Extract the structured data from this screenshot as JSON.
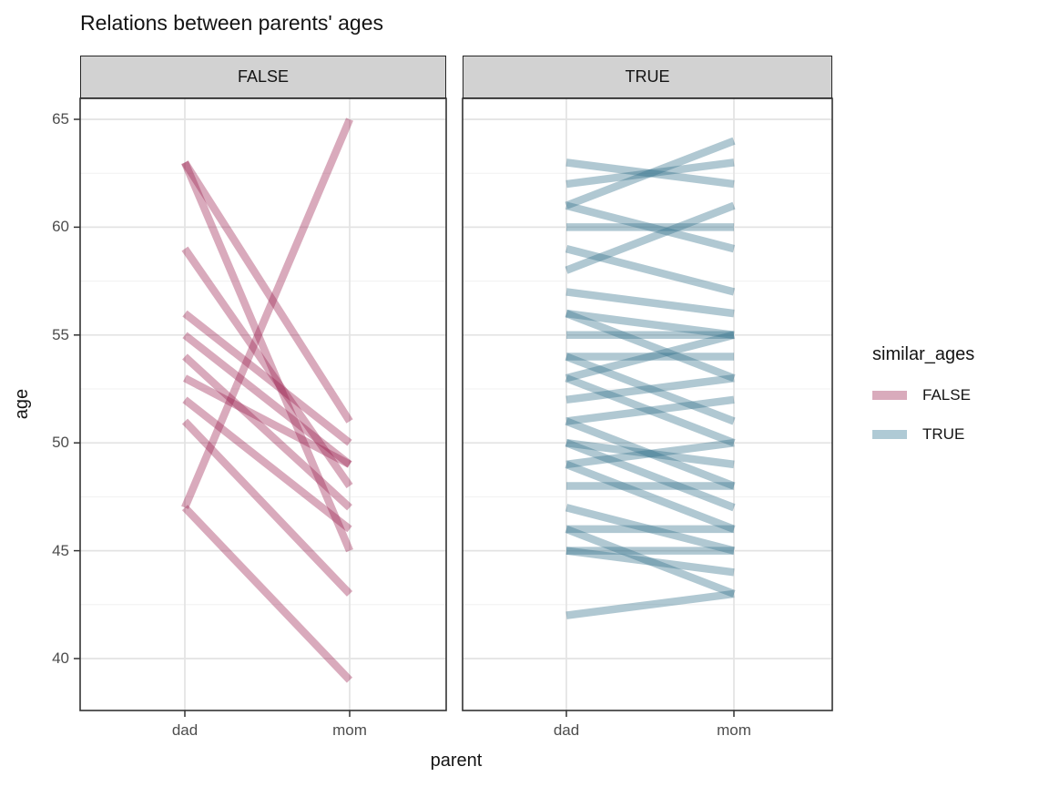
{
  "chart_data": {
    "type": "line",
    "subtype": "slopegraph-faceted",
    "title": "Relations between parents' ages",
    "xlabel": "parent",
    "ylabel": "age",
    "x_categories": [
      "dad",
      "mom"
    ],
    "y_ticks": [
      40,
      45,
      50,
      55,
      60,
      65
    ],
    "y_minor_ticks": [
      42.5,
      47.5,
      52.5,
      57.5,
      62.5
    ],
    "ylim": [
      37.6,
      66.1
    ],
    "grid": true,
    "line_opacity": 0.38,
    "facets": [
      {
        "label": "FALSE",
        "line_color": "#9B1F4F",
        "lines": [
          {
            "dad": 63,
            "mom": 51
          },
          {
            "dad": 63,
            "mom": 45
          },
          {
            "dad": 59,
            "mom": 48
          },
          {
            "dad": 56,
            "mom": 50
          },
          {
            "dad": 55,
            "mom": 49
          },
          {
            "dad": 54,
            "mom": 47
          },
          {
            "dad": 53,
            "mom": 49
          },
          {
            "dad": 52,
            "mom": 46
          },
          {
            "dad": 51,
            "mom": 43
          },
          {
            "dad": 47,
            "mom": 65
          },
          {
            "dad": 47,
            "mom": 39
          }
        ]
      },
      {
        "label": "TRUE",
        "line_color": "#2F6F88",
        "lines": [
          {
            "dad": 63,
            "mom": 62
          },
          {
            "dad": 62,
            "mom": 63
          },
          {
            "dad": 61,
            "mom": 64
          },
          {
            "dad": 61,
            "mom": 59
          },
          {
            "dad": 60,
            "mom": 60
          },
          {
            "dad": 59,
            "mom": 57
          },
          {
            "dad": 58,
            "mom": 61
          },
          {
            "dad": 57,
            "mom": 56
          },
          {
            "dad": 56,
            "mom": 55
          },
          {
            "dad": 56,
            "mom": 53
          },
          {
            "dad": 55,
            "mom": 55
          },
          {
            "dad": 54,
            "mom": 54
          },
          {
            "dad": 54,
            "mom": 51
          },
          {
            "dad": 53,
            "mom": 55
          },
          {
            "dad": 53,
            "mom": 50
          },
          {
            "dad": 52,
            "mom": 53
          },
          {
            "dad": 51,
            "mom": 52
          },
          {
            "dad": 51,
            "mom": 48
          },
          {
            "dad": 50,
            "mom": 49
          },
          {
            "dad": 50,
            "mom": 47
          },
          {
            "dad": 49,
            "mom": 50
          },
          {
            "dad": 49,
            "mom": 46
          },
          {
            "dad": 48,
            "mom": 48
          },
          {
            "dad": 47,
            "mom": 45
          },
          {
            "dad": 46,
            "mom": 46
          },
          {
            "dad": 46,
            "mom": 43
          },
          {
            "dad": 45,
            "mom": 45
          },
          {
            "dad": 45,
            "mom": 44
          },
          {
            "dad": 42,
            "mom": 43
          }
        ]
      }
    ],
    "legend": {
      "title": "similar_ages",
      "entries": [
        {
          "label": "FALSE",
          "swatch_color": "#D9ABBC"
        },
        {
          "label": "TRUE",
          "swatch_color": "#AFCAD5"
        }
      ],
      "position": "right"
    },
    "colors": {
      "grid_major": "#E3E3E3",
      "grid_minor": "#F0F0F0",
      "panel_border": "#333333",
      "strip_fill": "#D2D2D2",
      "tick_mark": "#333333",
      "axis_text": "#4D4D4D"
    }
  }
}
